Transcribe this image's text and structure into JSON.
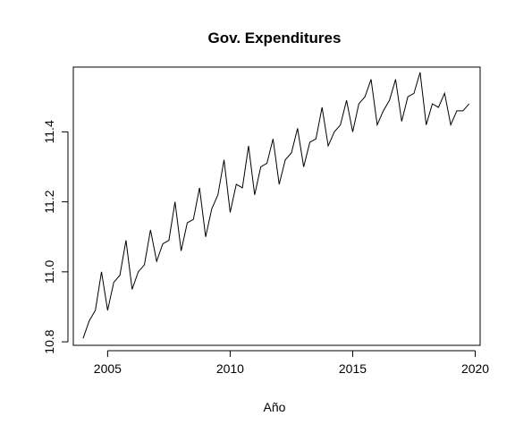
{
  "chart_data": {
    "type": "line",
    "title": "Gov. Expenditures",
    "xlabel": "Año",
    "ylabel": "",
    "xlim": [
      2003.6,
      2020.2
    ],
    "ylim": [
      10.79,
      11.585
    ],
    "x_ticks": [
      2005,
      2010,
      2015,
      2020
    ],
    "x_tick_labels": [
      "2005",
      "2010",
      "2015",
      "2020"
    ],
    "y_ticks": [
      10.8,
      11.0,
      11.2,
      11.4
    ],
    "y_tick_labels": [
      "10.8",
      "11.0",
      "11.2",
      "11.4"
    ],
    "grid": false,
    "legend": "none",
    "line_color": "#000000",
    "series": [
      {
        "x": [
          2004.0,
          2004.25,
          2004.5,
          2004.75,
          2005.0,
          2005.25,
          2005.5,
          2005.75,
          2006.0,
          2006.25,
          2006.5,
          2006.75,
          2007.0,
          2007.25,
          2007.5,
          2007.75,
          2008.0,
          2008.25,
          2008.5,
          2008.75,
          2009.0,
          2009.25,
          2009.5,
          2009.75,
          2010.0,
          2010.25,
          2010.5,
          2010.75,
          2011.0,
          2011.25,
          2011.5,
          2011.75,
          2012.0,
          2012.25,
          2012.5,
          2012.75,
          2013.0,
          2013.25,
          2013.5,
          2013.75,
          2014.0,
          2014.25,
          2014.5,
          2014.75,
          2015.0,
          2015.25,
          2015.5,
          2015.75,
          2016.0,
          2016.25,
          2016.5,
          2016.75,
          2017.0,
          2017.25,
          2017.5,
          2017.75,
          2018.0,
          2018.25,
          2018.5,
          2018.75,
          2019.0,
          2019.25,
          2019.5,
          2019.75
        ],
        "values": [
          10.81,
          10.86,
          10.89,
          11.0,
          10.89,
          10.97,
          10.99,
          11.09,
          10.95,
          11.0,
          11.02,
          11.12,
          11.03,
          11.08,
          11.09,
          11.2,
          11.06,
          11.14,
          11.15,
          11.24,
          11.1,
          11.18,
          11.22,
          11.32,
          11.17,
          11.25,
          11.24,
          11.36,
          11.22,
          11.3,
          11.31,
          11.38,
          11.25,
          11.32,
          11.34,
          11.41,
          11.3,
          11.37,
          11.38,
          11.47,
          11.36,
          11.4,
          11.42,
          11.49,
          11.4,
          11.48,
          11.5,
          11.55,
          11.42,
          11.46,
          11.49,
          11.55,
          11.43,
          11.5,
          11.51,
          11.57,
          11.42,
          11.48,
          11.47,
          11.51,
          11.42,
          11.46,
          11.46,
          11.48
        ]
      }
    ]
  }
}
